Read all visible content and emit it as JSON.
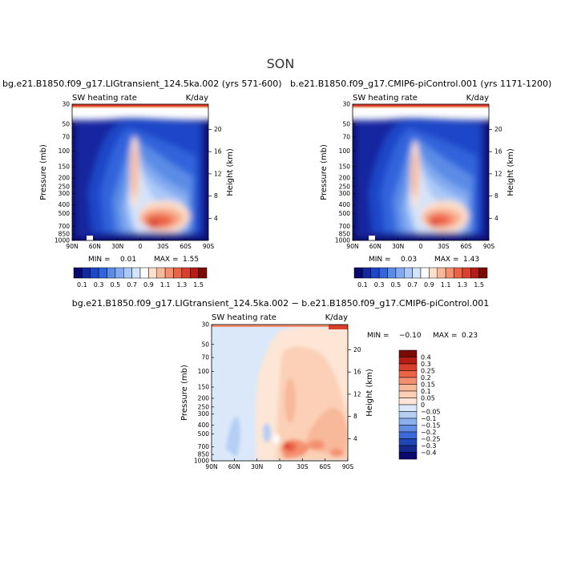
{
  "title": "SON",
  "chart_data": [
    {
      "type": "heatmap",
      "title": "bg.e21.B1850.f09_g17.LIGtransient_124.5ka.002 (yrs 571-600)",
      "left_label": "SW heating rate",
      "right_label": "K/day",
      "ylabel": "Pressure (mb)",
      "ylabel_right": "Height (km)",
      "x_ticks": [
        "90N",
        "60N",
        "30N",
        "0",
        "30S",
        "60S",
        "90S"
      ],
      "y_ticks": [
        "30",
        "50",
        "70",
        "100",
        "150",
        "200",
        "250",
        "300",
        "400",
        "500",
        "700",
        "850",
        "1000"
      ],
      "height_ticks": [
        "20",
        "16",
        "12",
        "8",
        "4"
      ],
      "min_label": "MIN =",
      "min": "0.01",
      "max_label": "MAX =",
      "max": "1.55"
    },
    {
      "type": "heatmap",
      "title": "b.e21.B1850.f09_g17.CMIP6-piControl.001 (yrs 1171-1200)",
      "left_label": "SW heating rate",
      "right_label": "K/day",
      "ylabel": "Pressure (mb)",
      "ylabel_right": "Height (km)",
      "x_ticks": [
        "90N",
        "60N",
        "30N",
        "0",
        "30S",
        "60S",
        "90S"
      ],
      "y_ticks": [
        "30",
        "50",
        "70",
        "100",
        "150",
        "200",
        "250",
        "300",
        "400",
        "500",
        "700",
        "850",
        "1000"
      ],
      "height_ticks": [
        "20",
        "16",
        "12",
        "8",
        "4"
      ],
      "min_label": "MIN =",
      "min": "0.03",
      "max_label": "MAX =",
      "max": "1.43"
    },
    {
      "type": "heatmap",
      "title": "bg.e21.B1850.f09_g17.LIGtransient_124.5ka.002 − b.e21.B1850.f09_g17.CMIP6-piControl.001",
      "left_label": "SW heating rate",
      "right_label": "K/day",
      "ylabel": "Pressure (mb)",
      "ylabel_right": "Height (km)",
      "x_ticks": [
        "90N",
        "60N",
        "30N",
        "0",
        "30S",
        "60S",
        "90S"
      ],
      "y_ticks": [
        "30",
        "50",
        "70",
        "100",
        "150",
        "200",
        "250",
        "300",
        "400",
        "500",
        "700",
        "850",
        "1000"
      ],
      "height_ticks": [
        "20",
        "16",
        "12",
        "8",
        "4"
      ],
      "min_label": "MIN =",
      "min": "−0.10",
      "max_label": "MAX =",
      "max": "0.23"
    }
  ],
  "colorbar_abs": {
    "labels": [
      "0.1",
      "0.3",
      "0.5",
      "0.7",
      "0.9",
      "1.1",
      "1.3",
      "1.5"
    ],
    "colors": [
      "#0a0a6e",
      "#1428a0",
      "#1e46c8",
      "#3264dc",
      "#5a8ce6",
      "#82aaf0",
      "#aac8f8",
      "#d4e4fa",
      "#ffffff",
      "#fde0cc",
      "#f8b89a",
      "#f49070",
      "#ec6446",
      "#d8402c",
      "#b41e14",
      "#7a0a06"
    ]
  },
  "colorbar_diff": {
    "labels": [
      "0.4",
      "0.3",
      "0.25",
      "0.2",
      "0.15",
      "0.1",
      "0.05",
      "0",
      "−0.05",
      "−0.1",
      "−0.15",
      "−0.2",
      "−0.25",
      "−0.3",
      "−0.4"
    ],
    "colors": [
      "#7a0a06",
      "#b41e14",
      "#d8402c",
      "#ec6446",
      "#f49070",
      "#f8b89a",
      "#fbd0b6",
      "#fde6d6",
      "#dae8fa",
      "#b4cef4",
      "#8cb0ee",
      "#648ee4",
      "#3c6ad8",
      "#2046b4",
      "#142890",
      "#0a0a6e"
    ]
  }
}
